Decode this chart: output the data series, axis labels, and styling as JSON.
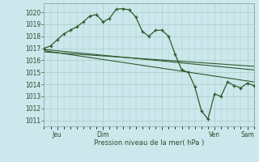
{
  "background_color": "#cce8ec",
  "grid_color": "#aacccc",
  "line_color": "#2d5a2d",
  "ylabel_text": "Pression niveau de la mer( hPa )",
  "ylim": [
    1010.5,
    1020.75
  ],
  "yticks": [
    1011,
    1012,
    1013,
    1014,
    1015,
    1016,
    1017,
    1018,
    1019,
    1020
  ],
  "xlim": [
    0,
    32
  ],
  "x_tick_positions": [
    2,
    9,
    18,
    26,
    31
  ],
  "x_tick_labels": [
    "Jeu",
    "Dim",
    "",
    "Ven",
    "Sam"
  ],
  "series_main": {
    "x": [
      0,
      1,
      2,
      3,
      4,
      5,
      6,
      7,
      8,
      9,
      10,
      11,
      12,
      13,
      14,
      15,
      16,
      17,
      18,
      19,
      20,
      21,
      22,
      23,
      24,
      25,
      26,
      27,
      28,
      29,
      30,
      31,
      32
    ],
    "y": [
      1017.0,
      1017.2,
      1017.7,
      1018.2,
      1018.5,
      1018.8,
      1019.2,
      1019.7,
      1019.8,
      1019.2,
      1019.5,
      1020.25,
      1020.3,
      1020.2,
      1019.6,
      1018.4,
      1018.0,
      1018.5,
      1018.5,
      1018.0,
      1016.5,
      1015.2,
      1015.0,
      1013.8,
      1011.8,
      1011.1,
      1013.2,
      1013.0,
      1014.2,
      1013.9,
      1013.7,
      1014.1,
      1013.9
    ]
  },
  "series_line1": {
    "x": [
      0,
      32
    ],
    "y": [
      1016.9,
      1015.2
    ]
  },
  "series_line2": {
    "x": [
      0,
      32
    ],
    "y": [
      1016.7,
      1015.5
    ]
  },
  "series_line3": {
    "x": [
      0,
      32
    ],
    "y": [
      1016.8,
      1014.2
    ]
  }
}
